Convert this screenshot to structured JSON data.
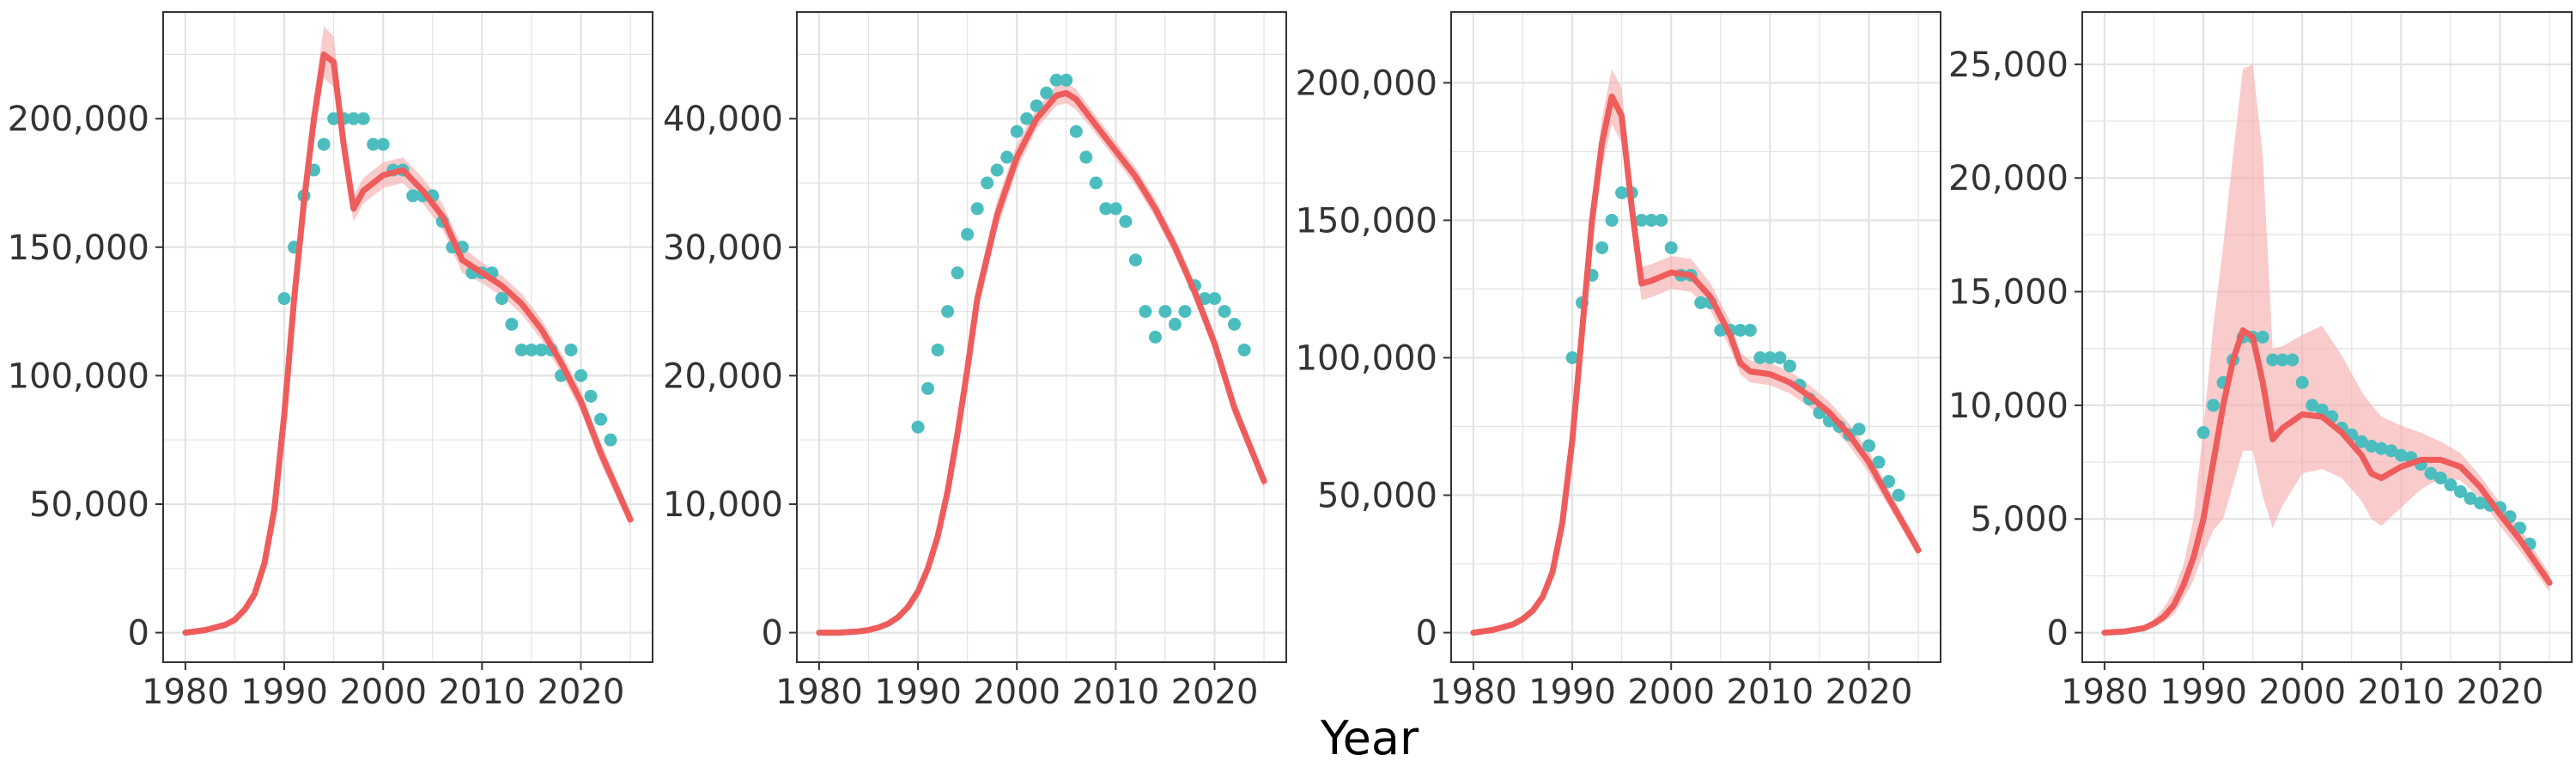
{
  "figure": {
    "xlabel": "Year",
    "colors": {
      "model": "#EE5C5C",
      "ribbon": "#F8AFAF",
      "observed": "#4BBDBF",
      "grid": "#E3E3E3",
      "frame": "#333333"
    }
  },
  "chart_data": [
    {
      "type": "line",
      "xlim": [
        1980,
        2025
      ],
      "ylim": [
        0,
        230000
      ],
      "xticks": [
        1980,
        1990,
        2000,
        2010,
        2020
      ],
      "yticks": [
        0,
        50000,
        100000,
        150000,
        200000
      ],
      "ytick_labels": [
        "0",
        "50,000",
        "100,000",
        "150,000",
        "200,000"
      ],
      "grid": true,
      "model": {
        "x": [
          1980,
          1982,
          1984,
          1985,
          1986,
          1987,
          1988,
          1989,
          1990,
          1991,
          1992,
          1993,
          1994,
          1995,
          1996,
          1997,
          1998,
          2000,
          2002,
          2004,
          2006,
          2008,
          2010,
          2012,
          2014,
          2016,
          2018,
          2020,
          2022,
          2025
        ],
        "y": [
          0,
          1000,
          3000,
          5000,
          9000,
          15000,
          27000,
          48000,
          85000,
          130000,
          168000,
          200000,
          225000,
          222000,
          190000,
          165000,
          172000,
          178000,
          180000,
          172000,
          162000,
          145000,
          140000,
          135000,
          128000,
          118000,
          105000,
          90000,
          70000,
          44000
        ],
        "lower": [
          0,
          900,
          2700,
          4500,
          8200,
          13500,
          24500,
          44500,
          80000,
          124000,
          161000,
          192000,
          216000,
          212000,
          183000,
          160000,
          167000,
          173000,
          175000,
          167000,
          157000,
          140000,
          136000,
          131000,
          124000,
          114000,
          101000,
          86000,
          66000,
          41000
        ],
        "upper": [
          0,
          1100,
          3300,
          5500,
          9800,
          16500,
          29500,
          51500,
          90000,
          136000,
          175000,
          208000,
          236000,
          232000,
          198000,
          170000,
          177000,
          183000,
          185000,
          177000,
          167000,
          150000,
          144000,
          139000,
          132000,
          122000,
          109000,
          94000,
          74000,
          47000
        ]
      },
      "observed": {
        "x": [
          1990,
          1991,
          1992,
          1993,
          1994,
          1995,
          1996,
          1997,
          1998,
          1999,
          2000,
          2001,
          2002,
          2003,
          2004,
          2005,
          2006,
          2007,
          2008,
          2009,
          2010,
          2011,
          2012,
          2013,
          2014,
          2015,
          2016,
          2017,
          2018,
          2019,
          2020,
          2021,
          2022,
          2023
        ],
        "y": [
          130000,
          150000,
          170000,
          180000,
          190000,
          200000,
          200000,
          200000,
          200000,
          190000,
          190000,
          180000,
          180000,
          170000,
          170000,
          170000,
          160000,
          150000,
          150000,
          140000,
          140000,
          140000,
          130000,
          120000,
          110000,
          110000,
          110000,
          110000,
          100000,
          110000,
          100000,
          92000,
          83000,
          75000
        ]
      }
    },
    {
      "type": "line",
      "xlim": [
        1980,
        2025
      ],
      "ylim": [
        0,
        46000
      ],
      "xticks": [
        1980,
        1990,
        2000,
        2010,
        2020
      ],
      "yticks": [
        0,
        10000,
        20000,
        30000,
        40000
      ],
      "ytick_labels": [
        "0",
        "10,000",
        "20,000",
        "30,000",
        "40,000"
      ],
      "grid": true,
      "model": {
        "x": [
          1980,
          1982,
          1984,
          1985,
          1986,
          1987,
          1988,
          1989,
          1990,
          1991,
          1992,
          1993,
          1994,
          1995,
          1996,
          1998,
          2000,
          2002,
          2004,
          2005,
          2006,
          2008,
          2010,
          2012,
          2014,
          2016,
          2018,
          2020,
          2022,
          2025
        ],
        "y": [
          0,
          0,
          100,
          200,
          400,
          700,
          1200,
          2000,
          3200,
          5000,
          7500,
          11000,
          15500,
          20500,
          26000,
          32500,
          37000,
          40000,
          41800,
          42000,
          41500,
          39500,
          37500,
          35500,
          33000,
          30000,
          26500,
          22500,
          17500,
          11800
        ],
        "lower": [
          0,
          0,
          90,
          180,
          360,
          630,
          1080,
          1800,
          2900,
          4600,
          7000,
          10300,
          14600,
          19300,
          24800,
          31400,
          36000,
          39200,
          41000,
          41200,
          40700,
          38800,
          36800,
          34800,
          32300,
          29300,
          25800,
          21800,
          16800,
          11200
        ],
        "upper": [
          0,
          0,
          110,
          220,
          440,
          770,
          1320,
          2200,
          3500,
          5400,
          8000,
          11700,
          16400,
          21700,
          27200,
          33600,
          38000,
          40800,
          42600,
          42800,
          42300,
          40200,
          38200,
          36200,
          33700,
          30700,
          27200,
          23200,
          18200,
          12400
        ]
      },
      "observed": {
        "x": [
          1990,
          1991,
          1992,
          1993,
          1994,
          1995,
          1996,
          1997,
          1998,
          1999,
          2000,
          2001,
          2002,
          2003,
          2004,
          2005,
          2006,
          2007,
          2008,
          2009,
          2010,
          2011,
          2012,
          2013,
          2014,
          2015,
          2016,
          2017,
          2018,
          2019,
          2020,
          2021,
          2022,
          2023
        ],
        "y": [
          16000,
          19000,
          22000,
          25000,
          28000,
          31000,
          33000,
          35000,
          36000,
          37000,
          39000,
          40000,
          41000,
          42000,
          43000,
          43000,
          39000,
          37000,
          35000,
          33000,
          33000,
          32000,
          29000,
          25000,
          23000,
          25000,
          24000,
          25000,
          27000,
          26000,
          26000,
          25000,
          24000,
          22000
        ]
      }
    },
    {
      "type": "line",
      "xlim": [
        1980,
        2025
      ],
      "ylim": [
        0,
        215000
      ],
      "xticks": [
        1980,
        1990,
        2000,
        2010,
        2020
      ],
      "yticks": [
        0,
        50000,
        100000,
        150000,
        200000
      ],
      "ytick_labels": [
        "0",
        "50,000",
        "100,000",
        "150,000",
        "200,000"
      ],
      "grid": true,
      "model": {
        "x": [
          1980,
          1982,
          1984,
          1985,
          1986,
          1987,
          1988,
          1989,
          1990,
          1991,
          1992,
          1993,
          1994,
          1995,
          1996,
          1997,
          1998,
          2000,
          2002,
          2004,
          2006,
          2007,
          2008,
          2010,
          2012,
          2014,
          2016,
          2018,
          2020,
          2022,
          2025
        ],
        "y": [
          0,
          1000,
          3000,
          5000,
          8000,
          13000,
          22000,
          40000,
          70000,
          110000,
          150000,
          178000,
          195000,
          188000,
          155000,
          127000,
          128000,
          131000,
          130000,
          122000,
          108000,
          98000,
          95000,
          94000,
          91000,
          86000,
          80000,
          72000,
          62000,
          49000,
          30000
        ],
        "lower": [
          0,
          900,
          2700,
          4500,
          7300,
          11800,
          20000,
          36500,
          65000,
          103000,
          142000,
          169000,
          185000,
          178000,
          148000,
          121000,
          122000,
          125000,
          124000,
          117000,
          103000,
          94000,
          91000,
          90000,
          87000,
          82000,
          76000,
          68000,
          58000,
          46000,
          27500
        ],
        "upper": [
          0,
          1100,
          3300,
          5500,
          8700,
          14200,
          24000,
          43500,
          75000,
          117000,
          158000,
          187000,
          205000,
          198000,
          162000,
          133000,
          134000,
          137000,
          136000,
          127000,
          113000,
          102000,
          99000,
          98000,
          95000,
          90000,
          84000,
          76000,
          66000,
          52000,
          32500
        ]
      },
      "observed": {
        "x": [
          1990,
          1991,
          1992,
          1993,
          1994,
          1995,
          1996,
          1997,
          1998,
          1999,
          2000,
          2001,
          2002,
          2003,
          2004,
          2005,
          2006,
          2007,
          2008,
          2009,
          2010,
          2011,
          2012,
          2013,
          2014,
          2015,
          2016,
          2017,
          2018,
          2019,
          2020,
          2021,
          2022,
          2023
        ],
        "y": [
          100000,
          120000,
          130000,
          140000,
          150000,
          160000,
          160000,
          150000,
          150000,
          150000,
          140000,
          130000,
          130000,
          120000,
          120000,
          110000,
          110000,
          110000,
          110000,
          100000,
          100000,
          100000,
          97000,
          90000,
          85000,
          80000,
          77000,
          75000,
          72000,
          74000,
          68000,
          62000,
          55000,
          50000
        ]
      }
    },
    {
      "type": "line",
      "xlim": [
        1980,
        2025
      ],
      "ylim": [
        0,
        26000
      ],
      "xticks": [
        1980,
        1990,
        2000,
        2010,
        2020
      ],
      "yticks": [
        0,
        5000,
        10000,
        15000,
        20000,
        25000
      ],
      "ytick_labels": [
        "0",
        "5,000",
        "10,000",
        "15,000",
        "20,000",
        "25,000"
      ],
      "grid": true,
      "model": {
        "x": [
          1980,
          1982,
          1984,
          1985,
          1986,
          1987,
          1988,
          1989,
          1990,
          1991,
          1992,
          1993,
          1994,
          1995,
          1996,
          1997,
          1998,
          2000,
          2002,
          2004,
          2006,
          2007,
          2008,
          2010,
          2012,
          2014,
          2016,
          2018,
          2020,
          2022,
          2025
        ],
        "y": [
          0,
          50,
          200,
          400,
          700,
          1200,
          2100,
          3300,
          5000,
          7500,
          10000,
          12000,
          13300,
          13000,
          11000,
          8500,
          9000,
          9600,
          9500,
          8800,
          7800,
          7000,
          6800,
          7300,
          7600,
          7600,
          7300,
          6400,
          5200,
          4100,
          2200
        ],
        "lower": [
          0,
          30,
          120,
          250,
          450,
          800,
          1500,
          2300,
          3500,
          4500,
          5000,
          6500,
          8000,
          8000,
          6000,
          4600,
          5600,
          7000,
          7200,
          6800,
          5800,
          5000,
          4700,
          5500,
          6300,
          6800,
          6700,
          5900,
          4700,
          3600,
          1800
        ],
        "upper": [
          0,
          70,
          300,
          600,
          1100,
          1800,
          3000,
          5000,
          9000,
          13500,
          17000,
          21000,
          24800,
          25000,
          21000,
          12500,
          12600,
          13100,
          13500,
          12200,
          10600,
          10000,
          9500,
          9100,
          8800,
          8400,
          7900,
          6900,
          5700,
          4600,
          2600
        ]
      },
      "observed": {
        "x": [
          1990,
          1991,
          1992,
          1993,
          1994,
          1995,
          1996,
          1997,
          1998,
          1999,
          2000,
          2001,
          2002,
          2003,
          2004,
          2005,
          2006,
          2007,
          2008,
          2009,
          2010,
          2011,
          2012,
          2013,
          2014,
          2015,
          2016,
          2017,
          2018,
          2019,
          2020,
          2021,
          2022,
          2023
        ],
        "y": [
          8800,
          10000,
          11000,
          12000,
          13000,
          13000,
          13000,
          12000,
          12000,
          12000,
          11000,
          10000,
          9800,
          9500,
          9000,
          8700,
          8400,
          8200,
          8100,
          8000,
          7800,
          7700,
          7400,
          7000,
          6800,
          6500,
          6200,
          5900,
          5700,
          5600,
          5500,
          5100,
          4600,
          3900
        ]
      }
    }
  ]
}
